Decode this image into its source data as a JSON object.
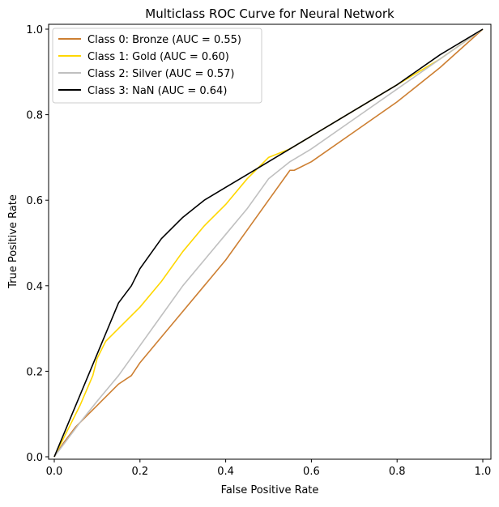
{
  "chart_data": {
    "type": "line",
    "title": "Multiclass ROC Curve for Neural Network",
    "xlabel": "False Positive Rate",
    "ylabel": "True Positive Rate",
    "xlim": [
      0.0,
      1.0
    ],
    "ylim": [
      0.0,
      1.0
    ],
    "xticks": [
      "0.0",
      "0.2",
      "0.4",
      "0.6",
      "0.8",
      "1.0"
    ],
    "yticks": [
      "0.0",
      "0.2",
      "0.4",
      "0.6",
      "0.8",
      "1.0"
    ],
    "grid": false,
    "legend_position": "upper-left",
    "series": [
      {
        "name": "Class 0: Bronze (AUC = 0.55)",
        "color": "#cd7f32",
        "x": [
          0.0,
          0.02,
          0.05,
          0.08,
          0.1,
          0.12,
          0.15,
          0.18,
          0.2,
          0.25,
          0.3,
          0.35,
          0.4,
          0.45,
          0.5,
          0.55,
          0.56,
          0.6,
          0.7,
          0.8,
          0.9,
          1.0
        ],
        "y": [
          0.0,
          0.03,
          0.07,
          0.1,
          0.12,
          0.14,
          0.17,
          0.19,
          0.22,
          0.28,
          0.34,
          0.4,
          0.46,
          0.53,
          0.6,
          0.67,
          0.67,
          0.69,
          0.76,
          0.83,
          0.91,
          1.0
        ]
      },
      {
        "name": "Class 1: Gold (AUC = 0.60)",
        "color": "#ffd700",
        "x": [
          0.0,
          0.03,
          0.06,
          0.09,
          0.1,
          0.12,
          0.15,
          0.2,
          0.25,
          0.3,
          0.35,
          0.4,
          0.45,
          0.5,
          0.55,
          0.6,
          0.7,
          0.8,
          0.9,
          1.0
        ],
        "y": [
          0.0,
          0.06,
          0.12,
          0.19,
          0.23,
          0.27,
          0.3,
          0.35,
          0.41,
          0.48,
          0.54,
          0.59,
          0.65,
          0.7,
          0.72,
          0.75,
          0.81,
          0.87,
          0.93,
          1.0
        ]
      },
      {
        "name": "Class 2: Silver (AUC = 0.57)",
        "color": "#c0c0c0",
        "x": [
          0.0,
          0.03,
          0.06,
          0.1,
          0.15,
          0.2,
          0.25,
          0.3,
          0.35,
          0.4,
          0.45,
          0.5,
          0.55,
          0.6,
          0.7,
          0.8,
          0.9,
          1.0
        ],
        "y": [
          0.0,
          0.04,
          0.08,
          0.13,
          0.19,
          0.26,
          0.33,
          0.4,
          0.46,
          0.52,
          0.58,
          0.65,
          0.69,
          0.72,
          0.79,
          0.86,
          0.93,
          1.0
        ]
      },
      {
        "name": "Class 3: NaN (AUC = 0.64)",
        "color": "#000000",
        "x": [
          0.0,
          0.05,
          0.1,
          0.15,
          0.18,
          0.2,
          0.25,
          0.3,
          0.35,
          0.4,
          0.45,
          0.5,
          0.55,
          0.6,
          0.65,
          0.7,
          0.8,
          0.9,
          1.0
        ],
        "y": [
          0.0,
          0.12,
          0.24,
          0.36,
          0.4,
          0.44,
          0.51,
          0.56,
          0.6,
          0.63,
          0.66,
          0.69,
          0.72,
          0.75,
          0.78,
          0.81,
          0.87,
          0.94,
          1.0
        ]
      }
    ]
  }
}
